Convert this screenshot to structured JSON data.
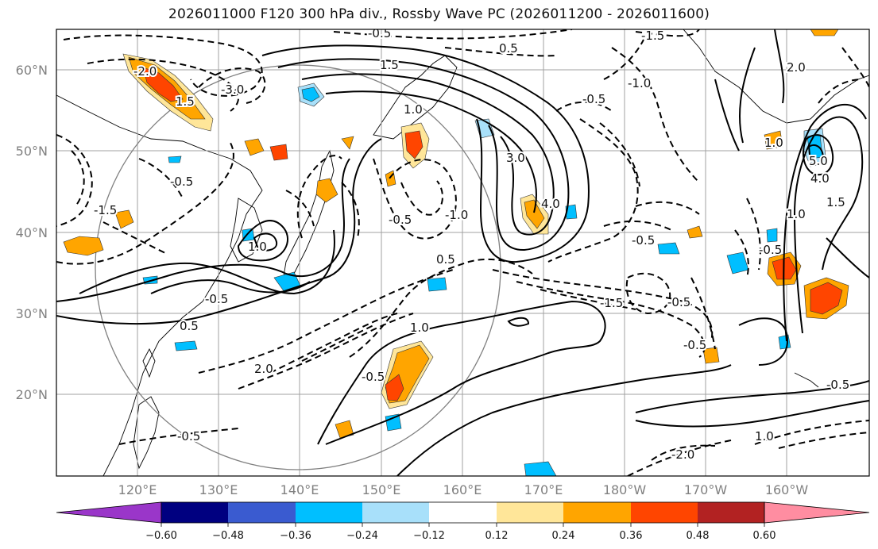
{
  "title": "2026011000 F120 300 hPa div., Rossby Wave PC (2026011200 - 2026011600)",
  "map": {
    "lat_labels": [
      "60°N",
      "50°N",
      "40°N",
      "30°N",
      "20°N"
    ],
    "lon_labels": [
      "120°E",
      "130°E",
      "140°E",
      "150°E",
      "160°E",
      "170°E",
      "180°W",
      "170°W",
      "160°W"
    ],
    "contour_labels": [
      "-0.5",
      "0.5",
      "-1.5",
      "-1.0",
      "-2.0",
      "-3.0",
      "1.5",
      "-0.5",
      "1.0",
      "3.0",
      "4.0",
      "-1.0",
      "-0.5",
      "1.0",
      "-1.5",
      "-0.5",
      "0.5",
      "1.5",
      "-0.5",
      "2.0",
      "5.0",
      "4.0",
      "1.5",
      "1.0",
      "-0.5",
      "-0.5",
      "0.5",
      "-0.5",
      "-2.0",
      "1.0",
      "-0.5",
      "1.0",
      "-1.5",
      "-0.5",
      "-0.5",
      "2.0",
      "1.0",
      "-0.5"
    ]
  },
  "colorbar": {
    "colors": [
      "#9a36c9",
      "#000080",
      "#3a5bd0",
      "#00bfff",
      "#a8e0fa",
      "#ffffff",
      "#ffe699",
      "#ffa500",
      "#ff4500",
      "#b22222",
      "#ff8da1"
    ],
    "ticks": [
      "−0.60",
      "−0.48",
      "−0.36",
      "−0.24",
      "−0.12",
      "0.12",
      "0.24",
      "0.36",
      "0.48",
      "0.60"
    ]
  }
}
